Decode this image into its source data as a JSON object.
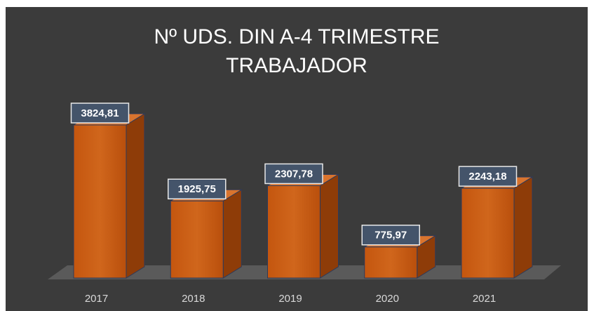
{
  "chart_data": {
    "type": "bar3d",
    "title": [
      "Nº UDS. DIN A-4 TRIMESTRE",
      "TRABAJADOR"
    ],
    "categories": [
      "2017",
      "2018",
      "2019",
      "2020",
      "2021"
    ],
    "values": [
      3824.81,
      1925.75,
      2307.78,
      775.97,
      2243.18
    ],
    "value_labels": [
      "3824,81",
      "1925,75",
      "2307,78",
      "775,97",
      "2243,18"
    ],
    "color": "#c55a11"
  }
}
